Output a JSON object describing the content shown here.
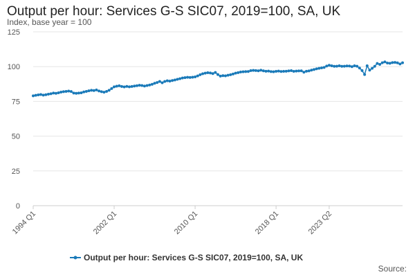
{
  "colors": {
    "series": "#1a7ab9",
    "grid": "#e6e6e6",
    "axis_text": "#555555",
    "title": "#222222"
  },
  "source_label": "Source:",
  "chart_data": {
    "type": "line",
    "title": "Output per hour: Services G-S SIC07, 2019=100, SA, UK",
    "subtitle": "Index, base year = 100",
    "xlabel": "",
    "ylabel": "",
    "ylim": [
      0,
      125
    ],
    "yticks": [
      0,
      25,
      50,
      75,
      100,
      125
    ],
    "x_tick_labels": [
      "1994 Q1",
      "2002 Q1",
      "2010 Q1",
      "2018 Q1",
      "2023 Q2"
    ],
    "x_start": "1994 Q1",
    "x_end": "2023 Q2",
    "grid": true,
    "legend_position": "bottom",
    "series": [
      {
        "name": "Output per hour: Services G-S SIC07, 2019=100, SA, UK",
        "marker": "circle",
        "values": [
          79.0,
          79.4,
          79.7,
          79.9,
          79.5,
          79.8,
          80.2,
          80.5,
          81.0,
          80.8,
          81.2,
          81.7,
          82.0,
          82.2,
          82.4,
          82.1,
          81.0,
          80.8,
          81.0,
          81.2,
          81.8,
          82.2,
          82.6,
          83.0,
          82.8,
          83.2,
          82.5,
          82.0,
          81.6,
          82.2,
          83.0,
          84.2,
          85.5,
          85.9,
          86.2,
          85.7,
          85.4,
          85.8,
          85.5,
          85.7,
          86.0,
          86.3,
          86.6,
          86.4,
          86.0,
          86.4,
          86.8,
          87.3,
          88.0,
          88.6,
          89.3,
          88.4,
          89.3,
          89.8,
          89.6,
          90.0,
          90.4,
          90.9,
          91.3,
          91.8,
          92.1,
          92.3,
          92.2,
          92.4,
          92.6,
          93.3,
          94.2,
          94.9,
          95.3,
          95.6,
          95.4,
          95.0,
          95.8,
          94.3,
          93.2,
          93.5,
          93.4,
          93.8,
          94.2,
          94.7,
          95.3,
          95.7,
          96.1,
          96.3,
          96.4,
          96.5,
          97.1,
          97.3,
          97.2,
          97.0,
          97.4,
          97.0,
          96.7,
          96.8,
          96.4,
          96.3,
          96.6,
          96.8,
          96.5,
          96.6,
          96.7,
          96.9,
          97.1,
          96.6,
          96.8,
          96.9,
          97.0,
          96.0,
          96.7,
          96.9,
          97.5,
          97.9,
          98.4,
          98.8,
          99.1,
          99.4,
          100.4,
          101.0,
          100.6,
          100.2,
          100.3,
          100.6,
          100.2,
          100.3,
          100.5,
          100.4,
          100.0,
          100.6,
          100.3,
          99.0,
          97.2,
          94.3,
          100.6,
          97.5,
          98.8,
          100.2,
          102.3,
          101.6,
          102.8,
          103.4,
          102.6,
          102.4,
          102.9,
          103.0,
          102.7,
          101.9,
          102.8
        ]
      }
    ]
  }
}
